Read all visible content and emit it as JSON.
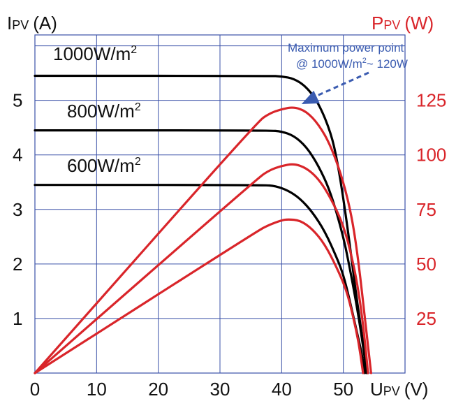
{
  "chart_data": {
    "type": "line",
    "left_axis": {
      "label_main": "I",
      "label_sub": "PV",
      "label_unit": "(A)",
      "ylim": [
        0,
        6.2
      ],
      "ticks": [
        1,
        2,
        3,
        4,
        5
      ]
    },
    "right_axis": {
      "label_main": "P",
      "label_sub": "PV",
      "label_unit": "(W)",
      "ylim": [
        0,
        155
      ],
      "ticks": [
        25,
        50,
        75,
        100,
        125
      ],
      "color": "#d9252a"
    },
    "x_axis": {
      "label_main": "U",
      "label_sub": "PV",
      "label_unit": "(V)",
      "xlim": [
        0,
        60
      ],
      "ticks": [
        0,
        10,
        20,
        30,
        40,
        50
      ]
    },
    "grid": true,
    "grid_color": "#3a50a8",
    "series": [
      {
        "name": "1000W/m",
        "name_sup": "2",
        "kind": "current",
        "color": "#000000",
        "points": [
          [
            0,
            5.45
          ],
          [
            38,
            5.45
          ],
          [
            40,
            5.44
          ],
          [
            42,
            5.4
          ],
          [
            44,
            5.25
          ],
          [
            46,
            4.95
          ],
          [
            48,
            4.4
          ],
          [
            49,
            3.9
          ],
          [
            50,
            3.2
          ],
          [
            51,
            2.4
          ],
          [
            52,
            1.5
          ],
          [
            53,
            0.7
          ],
          [
            54,
            0
          ]
        ]
      },
      {
        "name": "800W/m",
        "name_sup": "2",
        "kind": "current",
        "color": "#000000",
        "points": [
          [
            0,
            4.45
          ],
          [
            38,
            4.45
          ],
          [
            40,
            4.43
          ],
          [
            42,
            4.35
          ],
          [
            44,
            4.15
          ],
          [
            46,
            3.8
          ],
          [
            48,
            3.3
          ],
          [
            50,
            2.5
          ],
          [
            51,
            1.95
          ],
          [
            52,
            1.35
          ],
          [
            53,
            0.65
          ],
          [
            53.8,
            0
          ]
        ]
      },
      {
        "name": "600W/m",
        "name_sup": "2",
        "kind": "current",
        "color": "#000000",
        "points": [
          [
            0,
            3.45
          ],
          [
            37,
            3.45
          ],
          [
            39,
            3.43
          ],
          [
            41,
            3.35
          ],
          [
            43,
            3.2
          ],
          [
            45,
            2.95
          ],
          [
            47,
            2.6
          ],
          [
            49,
            2.1
          ],
          [
            50,
            1.8
          ],
          [
            51,
            1.35
          ],
          [
            52,
            0.85
          ],
          [
            53,
            0.35
          ],
          [
            53.5,
            0
          ]
        ]
      },
      {
        "name": "",
        "kind": "power",
        "color": "#d9252a",
        "points": [
          [
            0,
            0
          ],
          [
            36,
            115
          ],
          [
            38,
            119
          ],
          [
            40,
            121
          ],
          [
            42,
            122
          ],
          [
            44,
            120
          ],
          [
            46,
            114
          ],
          [
            48,
            104
          ],
          [
            50,
            88
          ],
          [
            51.5,
            70
          ],
          [
            52.5,
            50
          ],
          [
            53.5,
            25
          ],
          [
            54.5,
            0
          ]
        ]
      },
      {
        "name": "",
        "kind": "power",
        "color": "#d9252a",
        "points": [
          [
            0,
            0
          ],
          [
            36,
            89
          ],
          [
            38,
            93
          ],
          [
            40,
            95
          ],
          [
            42,
            96
          ],
          [
            44,
            94
          ],
          [
            46,
            89
          ],
          [
            48,
            80
          ],
          [
            50,
            68
          ],
          [
            51.5,
            52
          ],
          [
            52.5,
            37
          ],
          [
            53.3,
            20
          ],
          [
            54,
            0
          ]
        ]
      },
      {
        "name": "",
        "kind": "power",
        "color": "#d9252a",
        "points": [
          [
            0,
            0
          ],
          [
            36,
            65
          ],
          [
            38,
            68
          ],
          [
            40,
            70
          ],
          [
            41,
            70.5
          ],
          [
            43,
            70
          ],
          [
            45,
            66
          ],
          [
            47,
            59
          ],
          [
            49,
            48
          ],
          [
            50.5,
            38
          ],
          [
            51.5,
            27
          ],
          [
            52.5,
            14
          ],
          [
            53.2,
            0
          ]
        ]
      }
    ],
    "annotation": {
      "line1": "Maximum power point",
      "line2_pre": "@ 1000W/m",
      "line2_sup": "2",
      "line2_post": "~ 120W",
      "color": "#3a5bb0",
      "target": [
        43,
        122
      ]
    }
  }
}
